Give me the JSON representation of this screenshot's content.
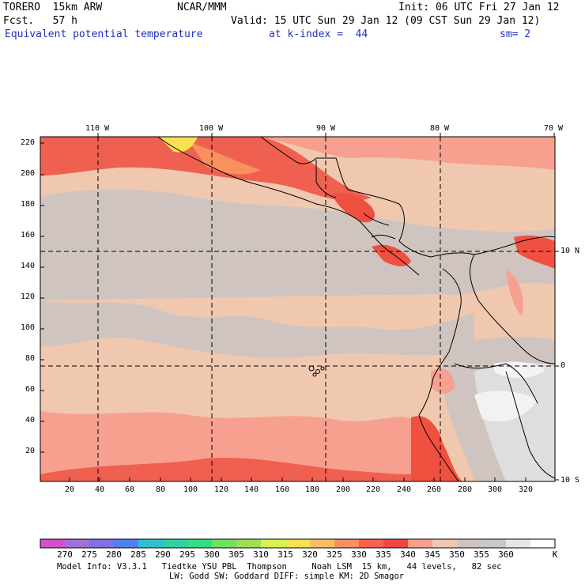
{
  "header": {
    "model": "TORERO  15km ARW",
    "org": "NCAR/MMM",
    "init": "Init: 06 UTC Fri 27 Jan 12",
    "fcst": "Fcst.   57 h",
    "valid": "Valid: 15 UTC Sun 29 Jan 12 (09 CST Sun 29 Jan 12)",
    "field": "Equivalent potential temperature",
    "level": "at k-index =  44",
    "smooth": "sm= 2"
  },
  "map": {
    "lon_labels": [
      "110 W",
      "100 W",
      "90 W",
      "80 W",
      "70 W"
    ],
    "lat_labels": [
      "10 N",
      "0",
      "10 S"
    ],
    "y_ticks": [
      "220",
      "200",
      "180",
      "160",
      "140",
      "120",
      "100",
      "80",
      "60",
      "40",
      "20"
    ],
    "x_ticks": [
      "20",
      "40",
      "60",
      "80",
      "100",
      "120",
      "140",
      "160",
      "180",
      "200",
      "220",
      "240",
      "260",
      "280",
      "300",
      "320"
    ]
  },
  "colorbar": {
    "labels": [
      "270",
      "275",
      "280",
      "285",
      "290",
      "295",
      "300",
      "305",
      "310",
      "315",
      "320",
      "325",
      "330",
      "335",
      "340",
      "345",
      "350",
      "355",
      "360"
    ],
    "unit": "K",
    "colors": [
      "#d050d0",
      "#a070d8",
      "#8070e8",
      "#5080f0",
      "#30c0d0",
      "#30d0a0",
      "#30e080",
      "#70e060",
      "#a0e050",
      "#d8f050",
      "#f8e050",
      "#f8c060",
      "#f89060",
      "#f86050",
      "#f04840",
      "#f8a090",
      "#f0c8b0",
      "#d0c4c0",
      "#c8c8c8",
      "#e6e6e6",
      "#ffffff"
    ]
  },
  "footer": {
    "line1": "Model Info: V3.3.1   Tiedtke YSU PBL  Thompson     Noah LSM  15 km,   44 levels,   82 sec",
    "line2": "LW: Godd SW: Goddard DIFF: simple KM: 2D Smagor"
  }
}
